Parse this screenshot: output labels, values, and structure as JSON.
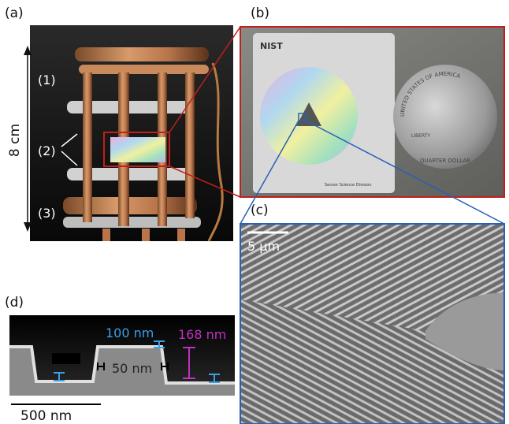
{
  "panels": {
    "a": {
      "label": "(a)",
      "scale": "8 cm",
      "levels": [
        "(1)",
        "(2)",
        "(3)"
      ]
    },
    "b": {
      "label": "(b)",
      "card_text": "NIST",
      "card_footer": "Sensor Science Division",
      "coin_text": [
        "UNITED STATES OF AMERICA",
        "LIBERTY",
        "QUARTER DOLLAR"
      ]
    },
    "c": {
      "label": "(c)",
      "scale": "5 µm"
    },
    "d": {
      "label": "(d)",
      "dims": [
        "100 nm",
        "168 nm",
        "50 nm"
      ],
      "scale": "500 nm"
    }
  }
}
